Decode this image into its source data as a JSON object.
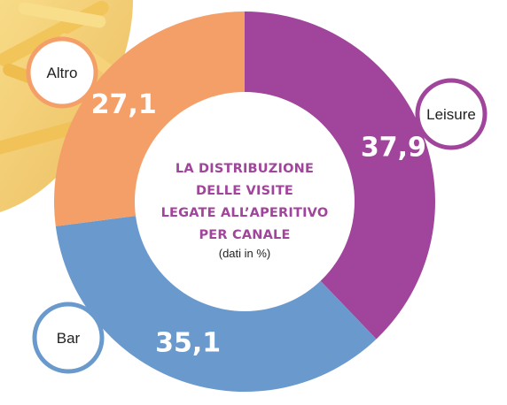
{
  "chart_data": {
    "type": "pie",
    "variant": "donut",
    "title_lines": [
      "LA DISTRIBUZIONE",
      "DELLE VISITE",
      "LEGATE ALL’APERITIVO",
      "PER CANALE"
    ],
    "subtitle": "(dati in %)",
    "slices": [
      {
        "label": "Leisure",
        "value": 37.9,
        "display": "37,9",
        "color": "#a0459b"
      },
      {
        "label": "Bar",
        "value": 35.1,
        "display": "35,1",
        "color": "#6a9acd"
      },
      {
        "label": "Altro",
        "value": 27.1,
        "display": "27,1",
        "color": "#f59f68"
      }
    ],
    "title_color": "#a0459b",
    "background": "fries-photo"
  }
}
